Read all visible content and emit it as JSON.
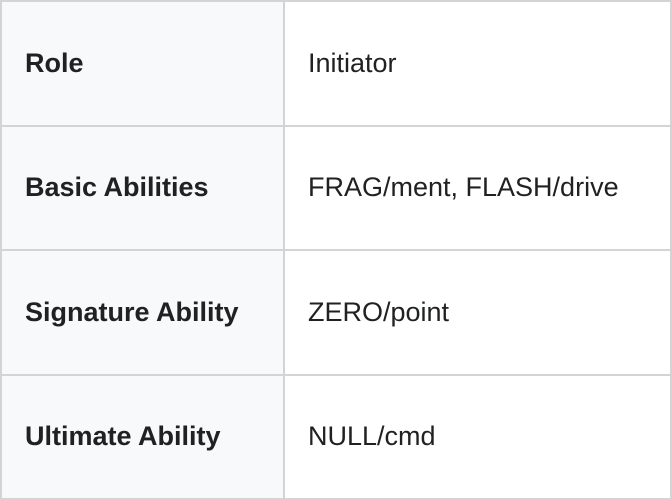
{
  "table": {
    "rows": [
      [
        "Role",
        "Initiator"
      ],
      [
        "Basic Abilities",
        "FRAG/ment, FLASH/drive"
      ],
      [
        "Signature Ability",
        "ZERO/point"
      ],
      [
        "Ultimate Ability",
        "NULL/cmd"
      ]
    ]
  }
}
